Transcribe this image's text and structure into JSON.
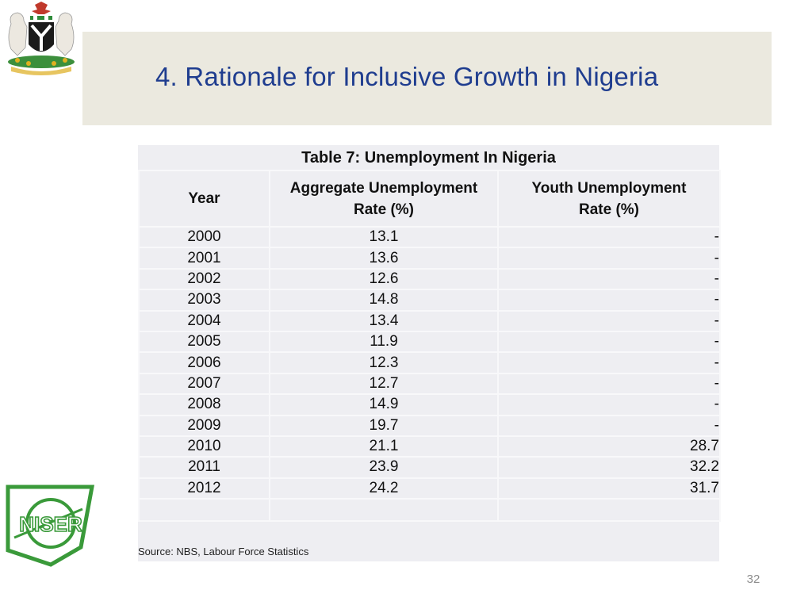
{
  "slide": {
    "title": "4. Rationale for Inclusive Growth in Nigeria",
    "page_number": "32"
  },
  "table": {
    "caption": "Table 7: Unemployment In Nigeria",
    "headers": {
      "year": "Year",
      "aggregate_line1": "Aggregate Unemployment",
      "aggregate_line2": "Rate (%)",
      "youth_line1": "Youth Unemployment",
      "youth_line2": "Rate (%)"
    },
    "rows": [
      {
        "year": "2000",
        "aggregate": "13.1",
        "youth": "-"
      },
      {
        "year": "2001",
        "aggregate": "13.6",
        "youth": "-"
      },
      {
        "year": "2002",
        "aggregate": "12.6",
        "youth": "-"
      },
      {
        "year": "2003",
        "aggregate": "14.8",
        "youth": "-"
      },
      {
        "year": "2004",
        "aggregate": "13.4",
        "youth": "-"
      },
      {
        "year": "2005",
        "aggregate": "11.9",
        "youth": "-"
      },
      {
        "year": "2006",
        "aggregate": "12.3",
        "youth": "-"
      },
      {
        "year": "2007",
        "aggregate": "12.7",
        "youth": "-"
      },
      {
        "year": "2008",
        "aggregate": "14.9",
        "youth": "-"
      },
      {
        "year": "2009",
        "aggregate": "19.7",
        "youth": "-"
      },
      {
        "year": "2010",
        "aggregate": "21.1",
        "youth": "28.7"
      },
      {
        "year": "2011",
        "aggregate": "23.9",
        "youth": "32.2"
      },
      {
        "year": "2012",
        "aggregate": "24.2",
        "youth": "31.7"
      }
    ],
    "source": "Source: NBS, Labour Force Statistics"
  },
  "logos": {
    "coat_of_arms": "nigeria-coat-of-arms",
    "niser": {
      "text": "NISER",
      "color": "#3a9a3a"
    }
  },
  "colors": {
    "title": "#1f3d8f",
    "title_band": "#ebe9df",
    "table_bg": "#eeeef2"
  }
}
